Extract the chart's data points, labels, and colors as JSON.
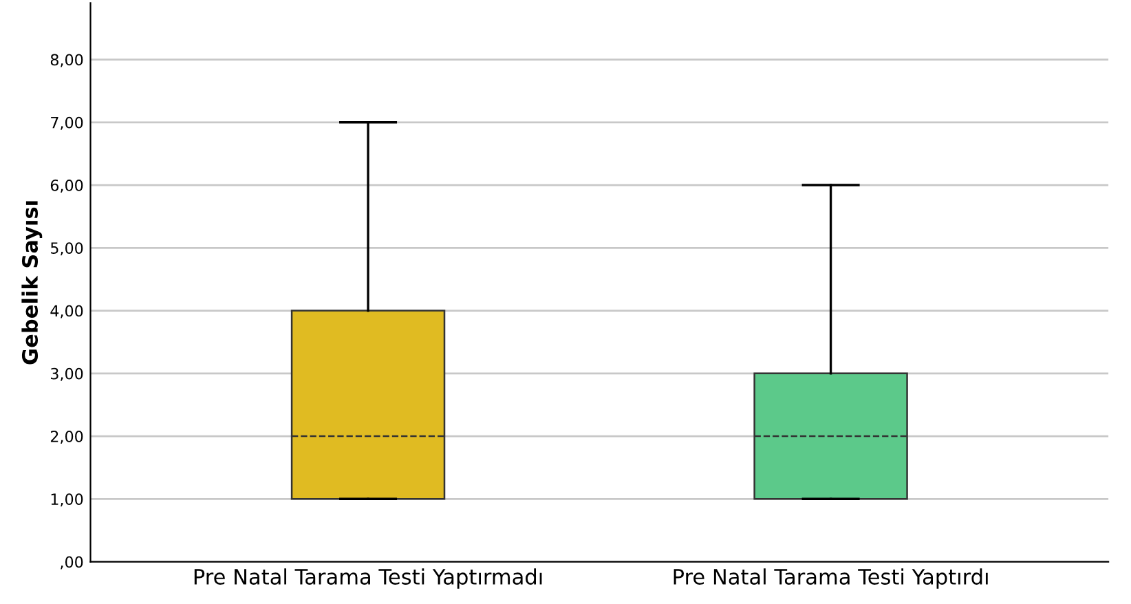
{
  "chart_data": {
    "type": "box",
    "ylabel": "Gebelik Sayısı",
    "categories": [
      "Pre Natal Tarama Testi Yaptırmadı",
      "Pre Natal Tarama Testi Yaptırdı"
    ],
    "boxes": [
      {
        "low": 1,
        "q1": 1,
        "median": 2,
        "q3": 4,
        "high": 7
      },
      {
        "low": 1,
        "q1": 1,
        "median": 2,
        "q3": 3,
        "high": 6
      }
    ],
    "colors": [
      "#e0bb22",
      "#5cc98a"
    ],
    "ylim": [
      0,
      8.9
    ],
    "yticks": [
      {
        "value": 0,
        "label": ",00"
      },
      {
        "value": 1,
        "label": "1,00"
      },
      {
        "value": 2,
        "label": "2,00"
      },
      {
        "value": 3,
        "label": "3,00"
      },
      {
        "value": 4,
        "label": "4,00"
      },
      {
        "value": 5,
        "label": "5,00"
      },
      {
        "value": 6,
        "label": "6,00"
      },
      {
        "value": 7,
        "label": "7,00"
      },
      {
        "value": 8,
        "label": "8,00"
      }
    ],
    "grid": "y",
    "legend": false
  }
}
